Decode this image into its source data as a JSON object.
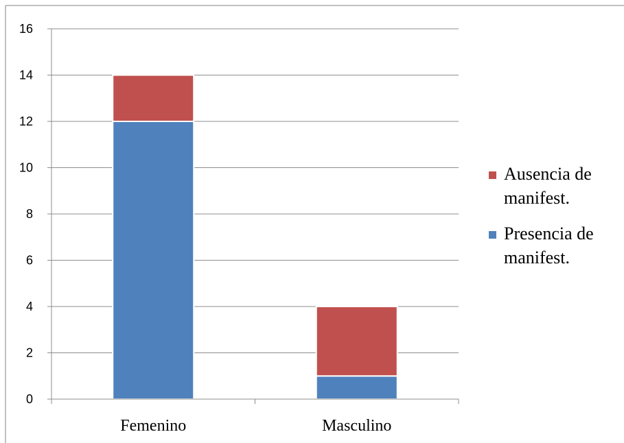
{
  "chart_data": {
    "type": "bar",
    "stacked": true,
    "categories": [
      "Femenino",
      "Masculino"
    ],
    "series": [
      {
        "name": "Presencia de manifest.",
        "values": [
          12,
          1
        ],
        "color": "#4F81BD"
      },
      {
        "name": "Ausencia de manifest.",
        "values": [
          2,
          3
        ],
        "color": "#C0504D"
      }
    ],
    "ylim": [
      0,
      16
    ],
    "yticks": [
      0,
      2,
      4,
      6,
      8,
      10,
      12,
      14,
      16
    ],
    "grid": true,
    "legend_position": "right",
    "legend_entries": [
      {
        "name_lines": [
          "Ausencia de",
          "manifest."
        ],
        "color": "#C0504D"
      },
      {
        "name_lines": [
          "Presencia de",
          "manifest."
        ],
        "color": "#4F81BD"
      }
    ]
  }
}
